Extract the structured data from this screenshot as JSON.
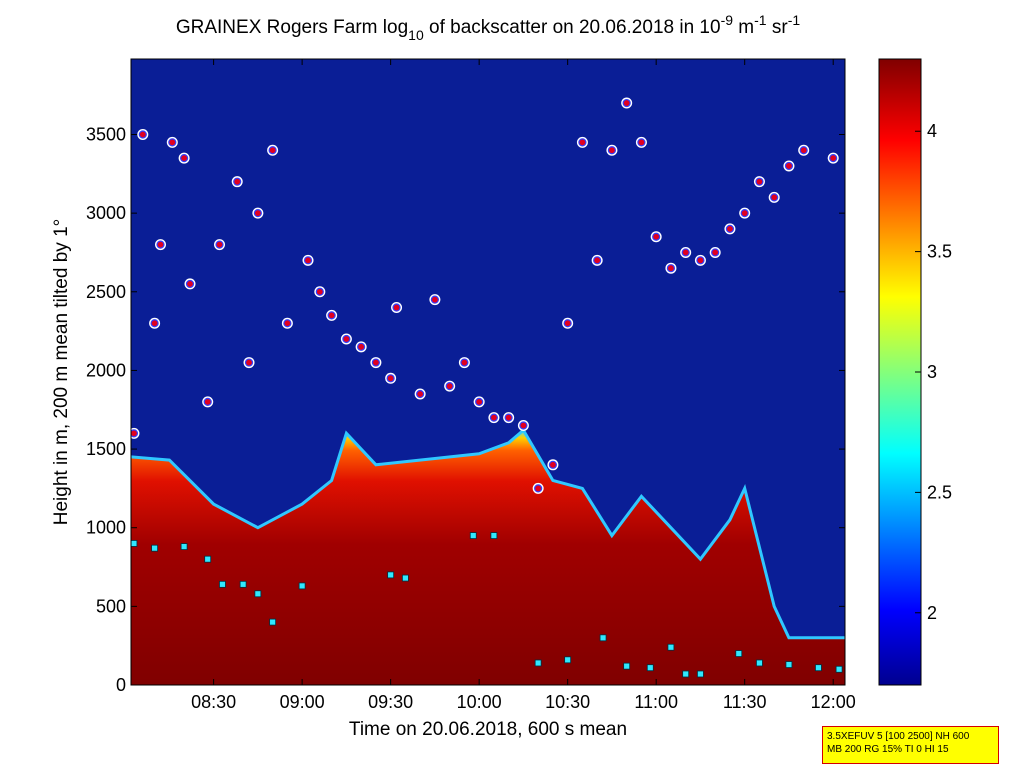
{
  "chart_data": {
    "type": "heatmap",
    "title": {
      "prefix": "GRAINEX Rogers Farm log",
      "log_base": "10",
      "middle": " of backscatter on 20.06.2018 in 10",
      "exp1": "-9",
      "unit_m": " m",
      "exp2": "-1",
      "unit_sr": " sr",
      "exp3": "-1"
    },
    "xlabel": "Time on 20.06.2018, 600 s mean",
    "ylabel": "Height in m, 200 m mean tilted by 1°",
    "xlim": [
      "08:02",
      "12:04"
    ],
    "ylim": [
      0,
      3980
    ],
    "x_ticks": [
      "08:30",
      "09:00",
      "09:30",
      "10:00",
      "10:30",
      "11:00",
      "11:30",
      "12:00"
    ],
    "y_ticks": [
      0,
      500,
      1000,
      1500,
      2000,
      2500,
      3000,
      3500
    ],
    "colorbar": {
      "range": [
        1.7,
        4.3
      ],
      "ticks": [
        2,
        2.5,
        3,
        3.5,
        4
      ],
      "colormap": "jet"
    },
    "background_color": "#0a1e96",
    "boundary_layer_top_m": [
      [
        "08:02",
        1450
      ],
      [
        "08:15",
        1430
      ],
      [
        "08:30",
        1150
      ],
      [
        "08:45",
        1000
      ],
      [
        "09:00",
        1150
      ],
      [
        "09:10",
        1300
      ],
      [
        "09:15",
        1600
      ],
      [
        "09:25",
        1400
      ],
      [
        "09:45",
        1440
      ],
      [
        "10:00",
        1470
      ],
      [
        "10:10",
        1540
      ],
      [
        "10:15",
        1620
      ],
      [
        "10:25",
        1300
      ],
      [
        "10:35",
        1250
      ],
      [
        "10:45",
        950
      ],
      [
        "10:55",
        1200
      ],
      [
        "11:05",
        1000
      ],
      [
        "11:15",
        800
      ],
      [
        "11:25",
        1050
      ],
      [
        "11:30",
        1250
      ],
      [
        "11:40",
        500
      ],
      [
        "11:45",
        300
      ],
      [
        "12:04",
        300
      ]
    ],
    "cloud_base_markers_m": [
      [
        "08:03",
        1600
      ],
      [
        "08:06",
        3500
      ],
      [
        "08:10",
        2300
      ],
      [
        "08:12",
        2800
      ],
      [
        "08:16",
        3450
      ],
      [
        "08:20",
        3350
      ],
      [
        "08:22",
        2550
      ],
      [
        "08:28",
        1800
      ],
      [
        "08:32",
        2800
      ],
      [
        "08:38",
        3200
      ],
      [
        "08:42",
        2050
      ],
      [
        "08:45",
        3000
      ],
      [
        "08:50",
        3400
      ],
      [
        "08:55",
        2300
      ],
      [
        "09:02",
        2700
      ],
      [
        "09:06",
        2500
      ],
      [
        "09:10",
        2350
      ],
      [
        "09:15",
        2200
      ],
      [
        "09:20",
        2150
      ],
      [
        "09:25",
        2050
      ],
      [
        "09:30",
        1950
      ],
      [
        "09:32",
        2400
      ],
      [
        "09:40",
        1850
      ],
      [
        "09:45",
        2450
      ],
      [
        "09:50",
        1900
      ],
      [
        "09:55",
        2050
      ],
      [
        "10:00",
        1800
      ],
      [
        "10:05",
        1700
      ],
      [
        "10:10",
        1700
      ],
      [
        "10:15",
        1650
      ],
      [
        "10:20",
        1250
      ],
      [
        "10:25",
        1400
      ],
      [
        "10:30",
        2300
      ],
      [
        "10:35",
        3450
      ],
      [
        "10:40",
        2700
      ],
      [
        "10:45",
        3400
      ],
      [
        "10:50",
        3700
      ],
      [
        "10:55",
        3450
      ],
      [
        "11:00",
        2850
      ],
      [
        "11:05",
        2650
      ],
      [
        "11:10",
        2750
      ],
      [
        "11:15",
        2700
      ],
      [
        "11:20",
        2750
      ],
      [
        "11:25",
        2900
      ],
      [
        "11:30",
        3000
      ],
      [
        "11:35",
        3200
      ],
      [
        "11:40",
        3100
      ],
      [
        "11:45",
        3300
      ],
      [
        "11:50",
        3400
      ],
      [
        "12:00",
        3350
      ]
    ],
    "low_cloud_markers_m": [
      [
        "08:03",
        900
      ],
      [
        "08:10",
        870
      ],
      [
        "08:20",
        880
      ],
      [
        "08:28",
        800
      ],
      [
        "08:33",
        640
      ],
      [
        "08:40",
        640
      ],
      [
        "08:45",
        580
      ],
      [
        "08:50",
        400
      ],
      [
        "09:00",
        630
      ],
      [
        "09:30",
        700
      ],
      [
        "09:35",
        680
      ],
      [
        "09:58",
        950
      ],
      [
        "10:05",
        950
      ],
      [
        "10:20",
        140
      ],
      [
        "10:30",
        160
      ],
      [
        "10:42",
        300
      ],
      [
        "10:50",
        120
      ],
      [
        "10:58",
        110
      ],
      [
        "11:05",
        240
      ],
      [
        "11:10",
        70
      ],
      [
        "11:15",
        70
      ],
      [
        "11:28",
        200
      ],
      [
        "11:35",
        140
      ],
      [
        "11:45",
        130
      ],
      [
        "11:55",
        110
      ],
      [
        "12:02",
        100
      ]
    ]
  },
  "info_box": {
    "line1": "3.5XEFUV 5 [100 2500] NH 600",
    "line2": "MB 200 RG 15% TI 0 HI 15"
  }
}
